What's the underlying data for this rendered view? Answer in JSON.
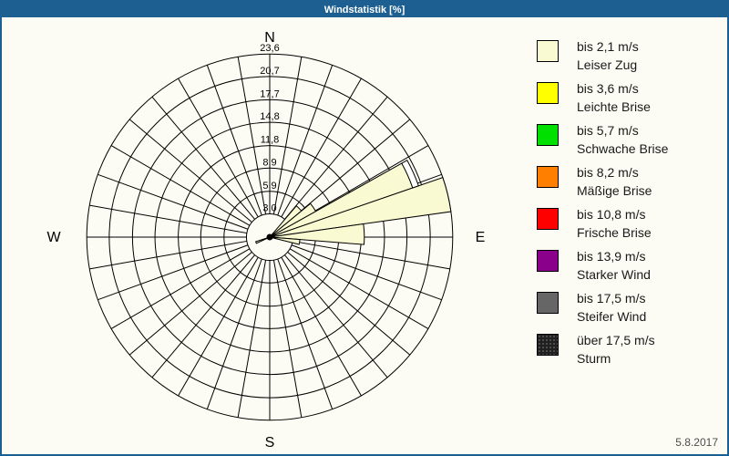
{
  "window": {
    "title": "Windstatistik [%]"
  },
  "footer": {
    "date": "5.8.2017"
  },
  "colors": {
    "title_bar": "#1D5F90",
    "frame_border": "#1D5F90",
    "background": "#FCFCF4",
    "grid_line": "#000000",
    "petal_fill": "#FAFAD2",
    "petal_stroke": "#000000",
    "date_text": "#4d4d4d"
  },
  "chart_data": {
    "type": "windrose",
    "title": "Windstatistik [%]",
    "units": "%",
    "sector_count": 36,
    "sector_width_deg": 10,
    "compass": {
      "north": "N",
      "east": "E",
      "south": "S",
      "west": "W"
    },
    "axis": {
      "max": 23.6,
      "rings": [
        {
          "value": 3.0,
          "label": "3,0"
        },
        {
          "value": 5.9,
          "label": "5,9"
        },
        {
          "value": 8.9,
          "label": "8,9"
        },
        {
          "value": 11.8,
          "label": "11,8"
        },
        {
          "value": 14.8,
          "label": "14,8"
        },
        {
          "value": 17.7,
          "label": "17,7"
        },
        {
          "value": 20.7,
          "label": "20,7"
        },
        {
          "value": 23.6,
          "label": "23,6"
        }
      ]
    },
    "petals": [
      {
        "from_deg": 40.5,
        "to_deg": 50.5,
        "value": 5.3,
        "class": "bis 2,1 m/s"
      },
      {
        "from_deg": 50.5,
        "to_deg": 60.8,
        "value": 6.8,
        "class": "bis 2,1 m/s"
      },
      {
        "from_deg": 60.8,
        "to_deg": 71.0,
        "value": 19.5,
        "class": "bis 2,1 m/s"
      },
      {
        "from_deg": 71.0,
        "to_deg": 82.0,
        "value": 23.6,
        "class": "bis 2,1 m/s"
      },
      {
        "from_deg": 82.0,
        "to_deg": 94.5,
        "value": 12.2,
        "class": "bis 2,1 m/s"
      },
      {
        "from_deg": 94.5,
        "to_deg": 104.0,
        "value": 3.9,
        "class": "bis 2,1 m/s"
      },
      {
        "from_deg": 245.0,
        "to_deg": 252.0,
        "value": 1.9,
        "class": "bis 2,1 m/s"
      }
    ],
    "outline_segments": [
      {
        "from_deg": 60.8,
        "to_deg": 71.0,
        "inner_value": 19.5,
        "outer_value": 20.3,
        "fill": "#FFFFFF"
      }
    ]
  },
  "legend": {
    "items": [
      {
        "color": "#FAFAD2",
        "speed": "bis 2,1 m/s",
        "name": "Leiser Zug",
        "textured": false
      },
      {
        "color": "#FFFF00",
        "speed": "bis 3,6 m/s",
        "name": "Leichte Brise",
        "textured": false
      },
      {
        "color": "#00E000",
        "speed": "bis 5,7 m/s",
        "name": "Schwache Brise",
        "textured": false
      },
      {
        "color": "#FF8000",
        "speed": "bis 8,2 m/s",
        "name": "Mäßige Brise",
        "textured": false
      },
      {
        "color": "#FF0000",
        "speed": "bis 10,8 m/s",
        "name": "Frische Brise",
        "textured": false
      },
      {
        "color": "#8B008B",
        "speed": "bis 13,9 m/s",
        "name": "Starker Wind",
        "textured": false
      },
      {
        "color": "#666666",
        "speed": "bis 17,5 m/s",
        "name": "Steifer Wind",
        "textured": false
      },
      {
        "color": "#1f1f1f",
        "speed": "über 17,5 m/s",
        "name": "Sturm",
        "textured": true
      }
    ]
  }
}
